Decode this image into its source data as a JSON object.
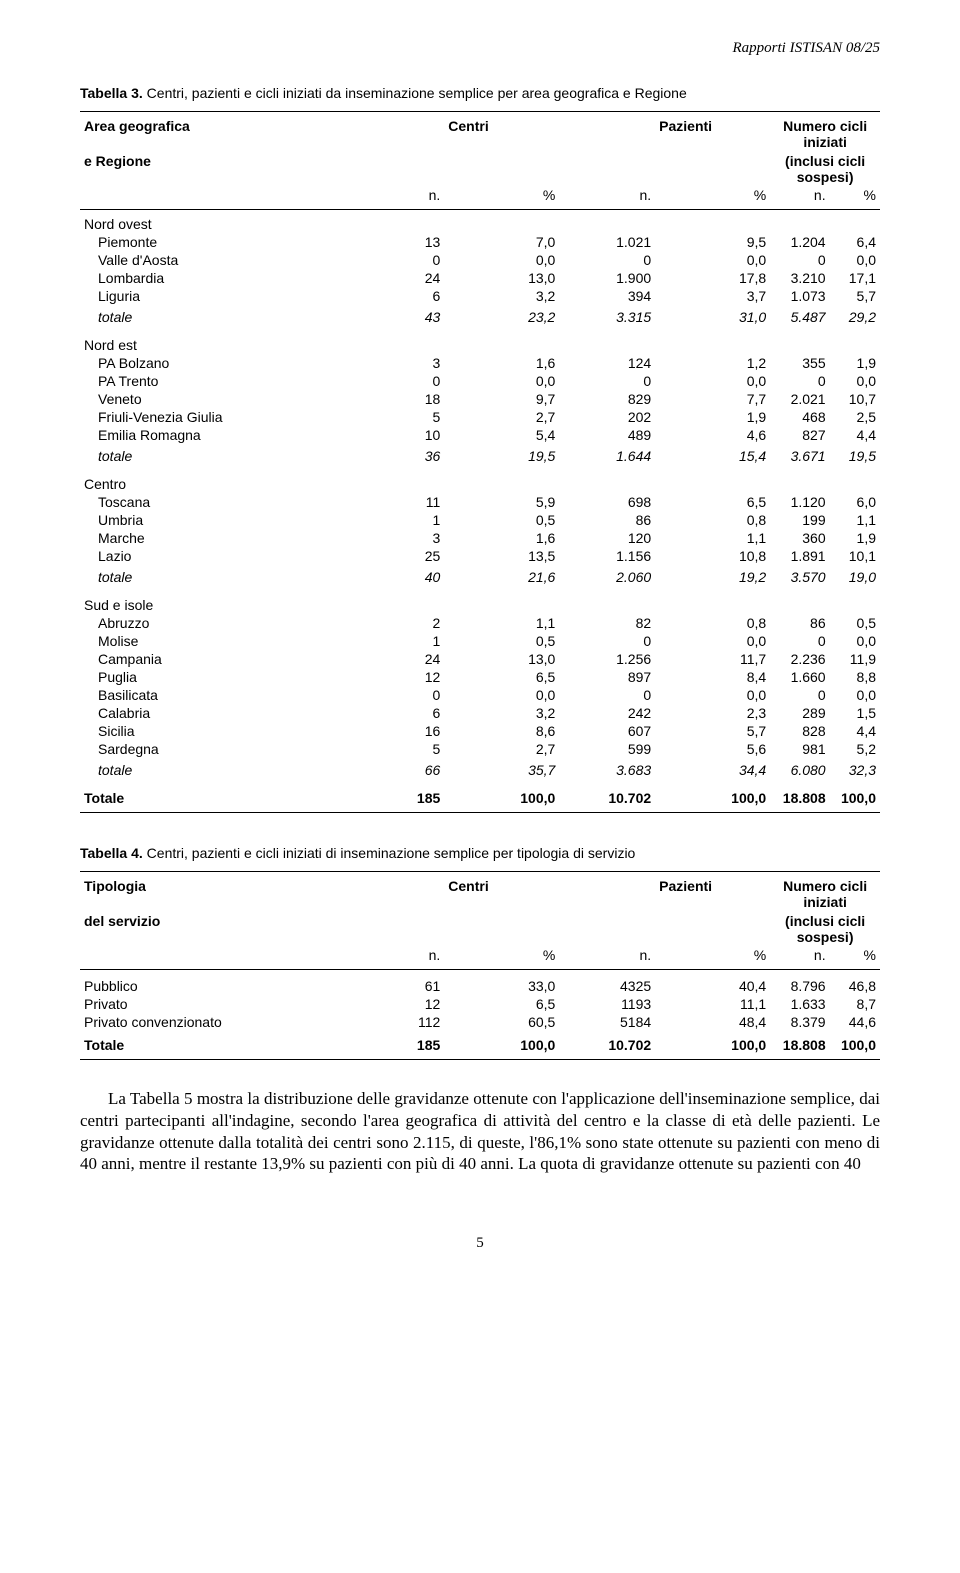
{
  "header": {
    "doc_ref": "Rapporti ISTISAN 08/25"
  },
  "table3": {
    "caption_prefix": "Tabella 3.",
    "caption_rest": " Centri, pazienti e cicli iniziati da inseminazione semplice per area geografica e Regione",
    "col_group1_a": "Area geografica",
    "col_group1_b": "e Regione",
    "col_centri": "Centri",
    "col_pazienti": "Pazienti",
    "col_cicli_a": "Numero cicli iniziati",
    "col_cicli_b": "(inclusi cicli sospesi)",
    "sub_n": "n.",
    "sub_p": "%",
    "groups": [
      {
        "label": "Nord ovest",
        "rows": [
          {
            "name": "Piemonte",
            "c_n": "13",
            "c_p": "7,0",
            "p_n": "1.021",
            "p_p": "9,5",
            "i_n": "1.204",
            "i_p": "6,4"
          },
          {
            "name": "Valle d'Aosta",
            "c_n": "0",
            "c_p": "0,0",
            "p_n": "0",
            "p_p": "0,0",
            "i_n": "0",
            "i_p": "0,0"
          },
          {
            "name": "Lombardia",
            "c_n": "24",
            "c_p": "13,0",
            "p_n": "1.900",
            "p_p": "17,8",
            "i_n": "3.210",
            "i_p": "17,1"
          },
          {
            "name": "Liguria",
            "c_n": "6",
            "c_p": "3,2",
            "p_n": "394",
            "p_p": "3,7",
            "i_n": "1.073",
            "i_p": "5,7"
          }
        ],
        "totale": {
          "name": "totale",
          "c_n": "43",
          "c_p": "23,2",
          "p_n": "3.315",
          "p_p": "31,0",
          "i_n": "5.487",
          "i_p": "29,2"
        }
      },
      {
        "label": "Nord est",
        "rows": [
          {
            "name": "PA Bolzano",
            "c_n": "3",
            "c_p": "1,6",
            "p_n": "124",
            "p_p": "1,2",
            "i_n": "355",
            "i_p": "1,9"
          },
          {
            "name": "PA Trento",
            "c_n": "0",
            "c_p": "0,0",
            "p_n": "0",
            "p_p": "0,0",
            "i_n": "0",
            "i_p": "0,0"
          },
          {
            "name": "Veneto",
            "c_n": "18",
            "c_p": "9,7",
            "p_n": "829",
            "p_p": "7,7",
            "i_n": "2.021",
            "i_p": "10,7"
          },
          {
            "name": "Friuli-Venezia Giulia",
            "c_n": "5",
            "c_p": "2,7",
            "p_n": "202",
            "p_p": "1,9",
            "i_n": "468",
            "i_p": "2,5"
          },
          {
            "name": "Emilia Romagna",
            "c_n": "10",
            "c_p": "5,4",
            "p_n": "489",
            "p_p": "4,6",
            "i_n": "827",
            "i_p": "4,4"
          }
        ],
        "totale": {
          "name": "totale",
          "c_n": "36",
          "c_p": "19,5",
          "p_n": "1.644",
          "p_p": "15,4",
          "i_n": "3.671",
          "i_p": "19,5"
        }
      },
      {
        "label": "Centro",
        "rows": [
          {
            "name": "Toscana",
            "c_n": "11",
            "c_p": "5,9",
            "p_n": "698",
            "p_p": "6,5",
            "i_n": "1.120",
            "i_p": "6,0"
          },
          {
            "name": "Umbria",
            "c_n": "1",
            "c_p": "0,5",
            "p_n": "86",
            "p_p": "0,8",
            "i_n": "199",
            "i_p": "1,1"
          },
          {
            "name": "Marche",
            "c_n": "3",
            "c_p": "1,6",
            "p_n": "120",
            "p_p": "1,1",
            "i_n": "360",
            "i_p": "1,9"
          },
          {
            "name": "Lazio",
            "c_n": "25",
            "c_p": "13,5",
            "p_n": "1.156",
            "p_p": "10,8",
            "i_n": "1.891",
            "i_p": "10,1"
          }
        ],
        "totale": {
          "name": "totale",
          "c_n": "40",
          "c_p": "21,6",
          "p_n": "2.060",
          "p_p": "19,2",
          "i_n": "3.570",
          "i_p": "19,0"
        }
      },
      {
        "label": "Sud e isole",
        "rows": [
          {
            "name": "Abruzzo",
            "c_n": "2",
            "c_p": "1,1",
            "p_n": "82",
            "p_p": "0,8",
            "i_n": "86",
            "i_p": "0,5"
          },
          {
            "name": "Molise",
            "c_n": "1",
            "c_p": "0,5",
            "p_n": "0",
            "p_p": "0,0",
            "i_n": "0",
            "i_p": "0,0"
          },
          {
            "name": "Campania",
            "c_n": "24",
            "c_p": "13,0",
            "p_n": "1.256",
            "p_p": "11,7",
            "i_n": "2.236",
            "i_p": "11,9"
          },
          {
            "name": "Puglia",
            "c_n": "12",
            "c_p": "6,5",
            "p_n": "897",
            "p_p": "8,4",
            "i_n": "1.660",
            "i_p": "8,8"
          },
          {
            "name": "Basilicata",
            "c_n": "0",
            "c_p": "0,0",
            "p_n": "0",
            "p_p": "0,0",
            "i_n": "0",
            "i_p": "0,0"
          },
          {
            "name": "Calabria",
            "c_n": "6",
            "c_p": "3,2",
            "p_n": "242",
            "p_p": "2,3",
            "i_n": "289",
            "i_p": "1,5"
          },
          {
            "name": "Sicilia",
            "c_n": "16",
            "c_p": "8,6",
            "p_n": "607",
            "p_p": "5,7",
            "i_n": "828",
            "i_p": "4,4"
          },
          {
            "name": "Sardegna",
            "c_n": "5",
            "c_p": "2,7",
            "p_n": "599",
            "p_p": "5,6",
            "i_n": "981",
            "i_p": "5,2"
          }
        ],
        "totale": {
          "name": "totale",
          "c_n": "66",
          "c_p": "35,7",
          "p_n": "3.683",
          "p_p": "34,4",
          "i_n": "6.080",
          "i_p": "32,3"
        }
      }
    ],
    "grand": {
      "name": "Totale",
      "c_n": "185",
      "c_p": "100,0",
      "p_n": "10.702",
      "p_p": "100,0",
      "i_n": "18.808",
      "i_p": "100,0"
    }
  },
  "table4": {
    "caption_prefix": "Tabella 4.",
    "caption_rest": " Centri, pazienti e cicli iniziati di inseminazione semplice per tipologia di servizio",
    "col_group1_a": "Tipologia",
    "col_group1_b": "del servizio",
    "col_centri": "Centri",
    "col_pazienti": "Pazienti",
    "col_cicli_a": "Numero cicli iniziati",
    "col_cicli_b": "(inclusi cicli sospesi)",
    "sub_n": "n.",
    "sub_p": "%",
    "rows": [
      {
        "name": "Pubblico",
        "c_n": "61",
        "c_p": "33,0",
        "p_n": "4325",
        "p_p": "40,4",
        "i_n": "8.796",
        "i_p": "46,8"
      },
      {
        "name": "Privato",
        "c_n": "12",
        "c_p": "6,5",
        "p_n": "1193",
        "p_p": "11,1",
        "i_n": "1.633",
        "i_p": "8,7"
      },
      {
        "name": "Privato convenzionato",
        "c_n": "112",
        "c_p": "60,5",
        "p_n": "5184",
        "p_p": "48,4",
        "i_n": "8.379",
        "i_p": "44,6"
      }
    ],
    "grand": {
      "name": "Totale",
      "c_n": "185",
      "c_p": "100,0",
      "p_n": "10.702",
      "p_p": "100,0",
      "i_n": "18.808",
      "i_p": "100,0"
    }
  },
  "paragraph": "La Tabella 5 mostra la distribuzione delle gravidanze ottenute con l'applicazione dell'inseminazione semplice, dai centri partecipanti all'indagine, secondo l'area geografica di attività del centro e la classe di età delle pazienti. Le gravidanze ottenute dalla totalità dei centri sono 2.115, di queste, l'86,1% sono state ottenute su pazienti con meno di 40 anni, mentre il restante 13,9% su pazienti con più di 40 anni. La quota di gravidanze ottenute su pazienti con 40",
  "page_number": "5"
}
